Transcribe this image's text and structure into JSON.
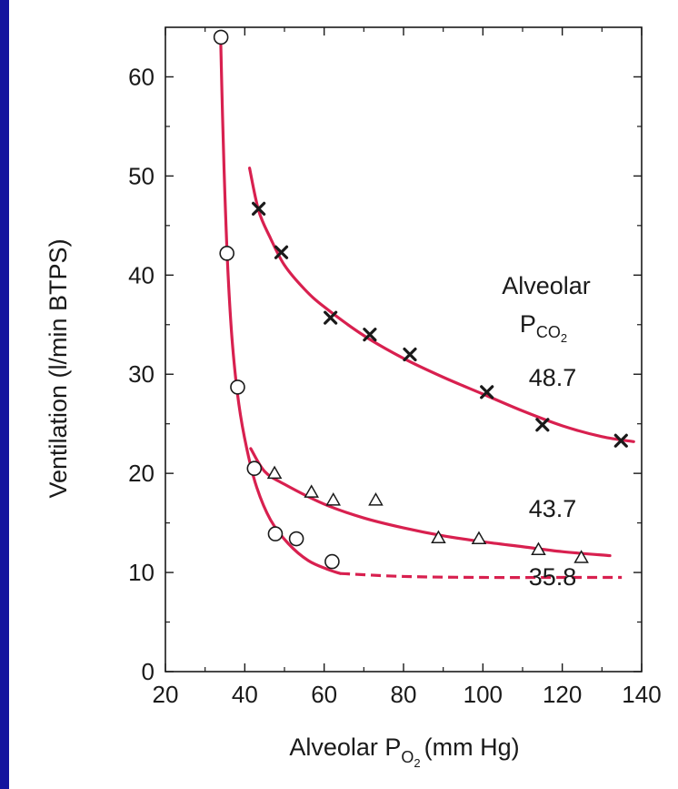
{
  "chart_data": {
    "type": "scatter",
    "xlabel": {
      "main": "Alveolar P",
      "sub": "O",
      "subsub": "2",
      "unit": "(mm Hg)"
    },
    "ylabel": "Ventilation (l/min BTPS)",
    "xlim": [
      20,
      140
    ],
    "ylim": [
      0,
      65
    ],
    "x_ticks": [
      20,
      40,
      60,
      80,
      100,
      120,
      140
    ],
    "y_ticks": [
      0,
      10,
      20,
      30,
      40,
      50,
      60
    ],
    "grid": false,
    "annotation": {
      "line1": "Alveolar",
      "line2_main": "P",
      "line2_sub": "CO",
      "line2_subsub": "2"
    },
    "colors": {
      "curve": "#d8204f",
      "marker": "#1a1a1a",
      "axis": "#1a1a1a",
      "background": "#14149e"
    },
    "series": [
      {
        "name": "35.8",
        "marker": "circle",
        "points": [
          [
            34,
            64
          ],
          [
            35.5,
            42.2
          ],
          [
            38.2,
            28.7
          ],
          [
            42.4,
            20.5
          ],
          [
            47.7,
            13.9
          ],
          [
            53,
            13.4
          ],
          [
            62,
            11.1
          ]
        ],
        "curve": [
          [
            33.9,
            64.2
          ],
          [
            34.4,
            56
          ],
          [
            35,
            48
          ],
          [
            35.8,
            40
          ],
          [
            36.9,
            33
          ],
          [
            38.5,
            27
          ],
          [
            40.5,
            22.5
          ],
          [
            43,
            18.6
          ],
          [
            46.5,
            15.3
          ],
          [
            51,
            12.9
          ],
          [
            56,
            11.2
          ],
          [
            61,
            10.3
          ],
          [
            64,
            9.9
          ]
        ],
        "dashed_curve": [
          [
            64,
            9.9
          ],
          [
            80,
            9.6
          ],
          [
            100,
            9.5
          ],
          [
            120,
            9.5
          ],
          [
            135,
            9.5
          ]
        ]
      },
      {
        "name": "43.7",
        "marker": "triangle",
        "points": [
          [
            47.5,
            20
          ],
          [
            56.8,
            18.1
          ],
          [
            62.3,
            17.3
          ],
          [
            73,
            17.3
          ],
          [
            88.8,
            13.5
          ],
          [
            99,
            13.4
          ],
          [
            114,
            12.3
          ],
          [
            124.8,
            11.5
          ]
        ],
        "curve": [
          [
            41.5,
            22.5
          ],
          [
            45,
            20.2
          ],
          [
            50,
            18.9
          ],
          [
            60,
            16.9
          ],
          [
            70,
            15.5
          ],
          [
            80,
            14.5
          ],
          [
            90,
            13.7
          ],
          [
            100,
            13.1
          ],
          [
            110,
            12.6
          ],
          [
            120,
            12.1
          ],
          [
            132,
            11.7
          ]
        ]
      },
      {
        "name": "48.7",
        "marker": "cross",
        "points": [
          [
            43.5,
            46.7
          ],
          [
            49.2,
            42.3
          ],
          [
            61.6,
            35.7
          ],
          [
            71.5,
            34
          ],
          [
            81.6,
            32
          ],
          [
            101,
            28.2
          ],
          [
            115,
            24.9
          ],
          [
            134.8,
            23.3
          ]
        ],
        "curve": [
          [
            41.2,
            50.8
          ],
          [
            43.5,
            46.5
          ],
          [
            46.5,
            43.7
          ],
          [
            50,
            41
          ],
          [
            55,
            38.6
          ],
          [
            60,
            36.8
          ],
          [
            70,
            33.9
          ],
          [
            80,
            31.6
          ],
          [
            90,
            29.7
          ],
          [
            100,
            28
          ],
          [
            110,
            26.3
          ],
          [
            120,
            24.8
          ],
          [
            130,
            23.7
          ],
          [
            138,
            23.2
          ]
        ]
      }
    ]
  }
}
